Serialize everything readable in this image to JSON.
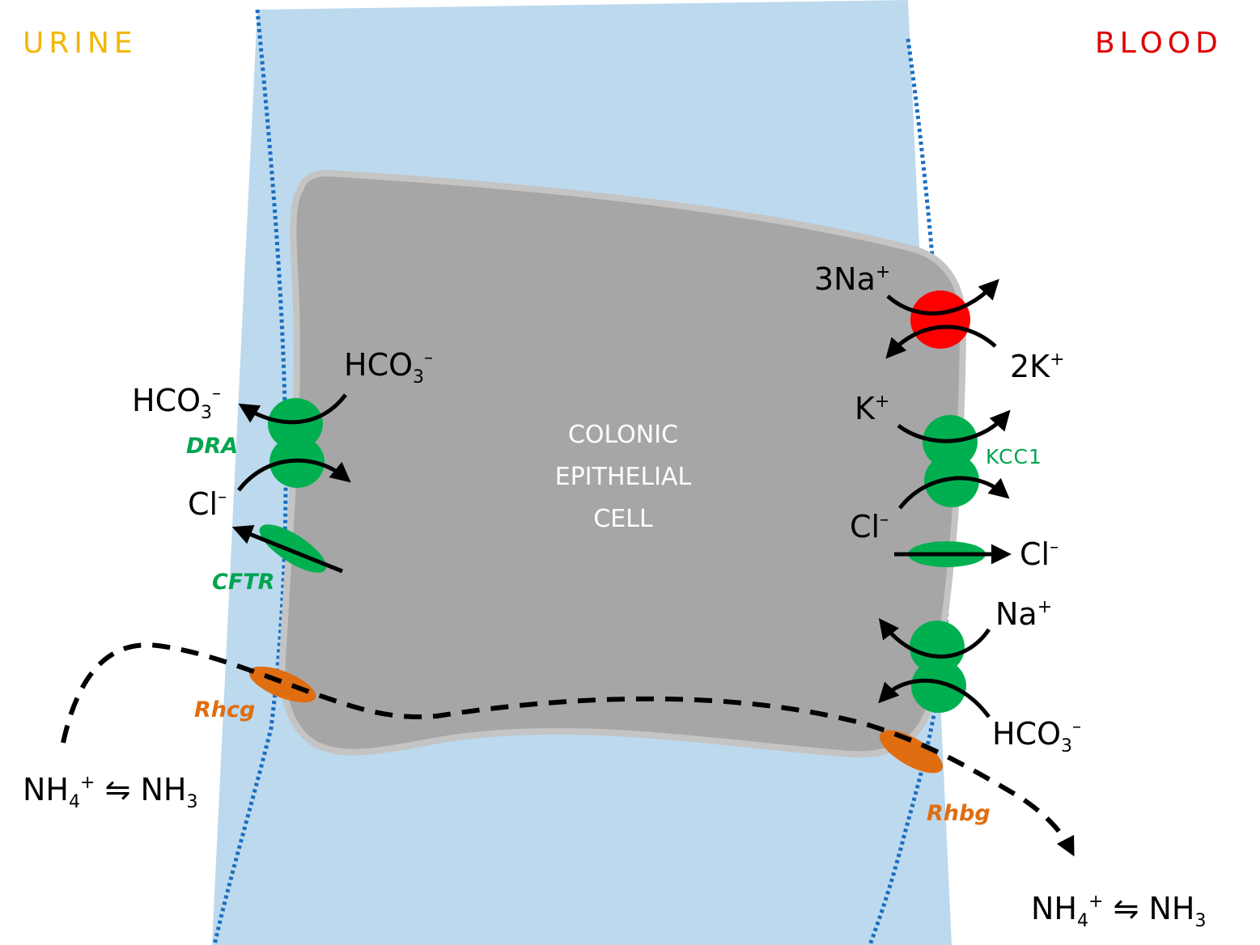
{
  "sides": {
    "urine": "URINE",
    "blood": "BLOOD",
    "urine_color": "#f2b705",
    "blood_color": "#e00000"
  },
  "cell": {
    "line1": "COLONIC",
    "line2": "EPITHELIAL",
    "line3": "CELL"
  },
  "transporters": {
    "dra": "DRA",
    "cftr": "CFTR",
    "kcc1": "KCC1",
    "rhcg": "Rhcg",
    "rhbg": "Rhbg"
  },
  "ions": {
    "three_na": "3Na",
    "two_k": "2K",
    "k": "K",
    "na": "Na",
    "hco": "HCO",
    "three": "3",
    "cl": "Cl",
    "minus": "–",
    "plus": "+",
    "nh": "NH",
    "four": "4",
    "eq": "⇋"
  },
  "colors": {
    "membrane_blue": "#bcd9ee",
    "dotted_border": "#1a6ec0",
    "cell_fill": "#a6a6a6",
    "cell_border": "#c4c4c4",
    "transporter_green": "#00b050",
    "pump_red": "#ff0000",
    "rh_orange": "#e06d10"
  },
  "icon_names": [
    "na-k-atpase-pump-icon",
    "dra-exchanger-icon",
    "cftr-channel-icon",
    "kcc1-cotransporter-icon",
    "cl-channel-icon",
    "na-hco3-cotransporter-icon",
    "rhcg-icon",
    "rhbg-icon"
  ]
}
